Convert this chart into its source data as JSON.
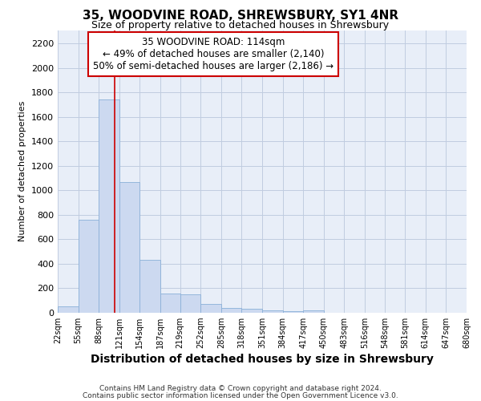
{
  "title": "35, WOODVINE ROAD, SHREWSBURY, SY1 4NR",
  "subtitle": "Size of property relative to detached houses in Shrewsbury",
  "xlabel": "Distribution of detached houses by size in Shrewsbury",
  "ylabel": "Number of detached properties",
  "footnote1": "Contains HM Land Registry data © Crown copyright and database right 2024.",
  "footnote2": "Contains public sector information licensed under the Open Government Licence v3.0.",
  "bin_edges": [
    22,
    55,
    88,
    121,
    154,
    187,
    219,
    252,
    285,
    318,
    351,
    384,
    417,
    450,
    483,
    516,
    548,
    581,
    614,
    647,
    680
  ],
  "bar_values": [
    55,
    760,
    1740,
    1070,
    430,
    155,
    150,
    75,
    38,
    30,
    22,
    15,
    22,
    0,
    0,
    0,
    0,
    0,
    0,
    0
  ],
  "bar_color": "#ccd9f0",
  "bar_edge_color": "#8ab0d8",
  "property_size": 114,
  "property_line_color": "#cc0000",
  "ylim": [
    0,
    2310
  ],
  "yticks": [
    0,
    200,
    400,
    600,
    800,
    1000,
    1200,
    1400,
    1600,
    1800,
    2000,
    2200
  ],
  "annotation_line1": "35 WOODVINE ROAD: 114sqm",
  "annotation_line2": "← 49% of detached houses are smaller (2,140)",
  "annotation_line3": "50% of semi-detached houses are larger (2,186) →",
  "annotation_box_color": "#cc0000",
  "grid_color": "#c0cce0",
  "background_color": "#e8eef8",
  "title_fontsize": 11,
  "subtitle_fontsize": 9,
  "xlabel_fontsize": 10,
  "ylabel_fontsize": 8,
  "ytick_fontsize": 8,
  "xtick_fontsize": 7,
  "annot_fontsize": 8.5,
  "footnote_fontsize": 6.5
}
